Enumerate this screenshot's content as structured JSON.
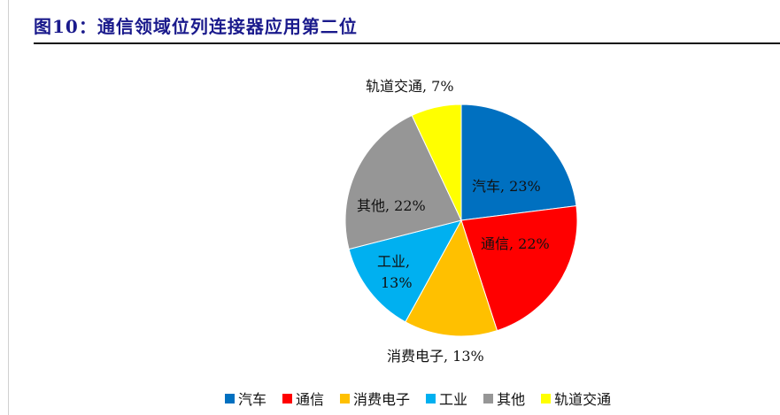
{
  "title": "图10：通信领域位列连接器应用第二位",
  "chart_data": {
    "type": "pie",
    "title": "图10：通信领域位列连接器应用第二位",
    "categories": [
      "汽车",
      "通信",
      "消费电子",
      "工业",
      "其他",
      "轨道交通"
    ],
    "values": [
      23,
      22,
      13,
      13,
      22,
      7
    ],
    "unit": "%",
    "colors": [
      "#0070C0",
      "#FF0000",
      "#FFC000",
      "#00B0F0",
      "#969696",
      "#FFFF00"
    ],
    "data_labels": [
      "汽车, 23%",
      "通信, 22%",
      "消费电子, 13%",
      "工业, 13%",
      "其他, 22%",
      "轨道交通, 7%"
    ],
    "start_angle_deg": 0,
    "direction": "clockwise",
    "legend_position": "bottom"
  },
  "labels": {
    "auto": "汽车, 23%",
    "telecom": "通信, 22%",
    "consumer": "消费电子, 13%",
    "industry_line1": "工业,",
    "industry_line2": "13%",
    "other": "其他, 22%",
    "rail": "轨道交通, 7%"
  },
  "legend": [
    {
      "label": "汽车",
      "color": "#0070C0"
    },
    {
      "label": "通信",
      "color": "#FF0000"
    },
    {
      "label": "消费电子",
      "color": "#FFC000"
    },
    {
      "label": "工业",
      "color": "#00B0F0"
    },
    {
      "label": "其他",
      "color": "#969696"
    },
    {
      "label": "轨道交通",
      "color": "#FFFF00"
    }
  ]
}
